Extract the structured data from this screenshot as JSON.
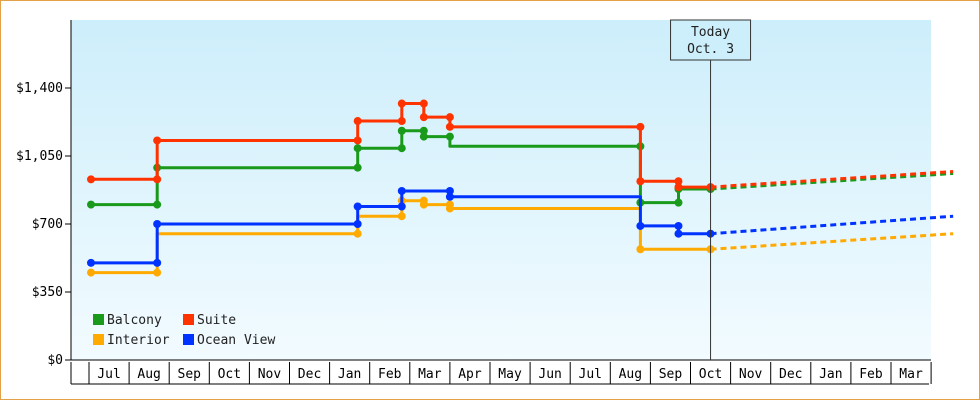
{
  "chart_data": {
    "type": "line",
    "title": "",
    "xlabel": "",
    "ylabel": "",
    "ylim": [
      0,
      1750
    ],
    "y_ticks": [
      "$0",
      "$350",
      "$700",
      "$1,050",
      "$1,400"
    ],
    "y_tick_values": [
      0,
      350,
      700,
      1050,
      1400
    ],
    "x_labels": [
      "Jul",
      "Aug",
      "Sep",
      "Oct",
      "Nov",
      "Dec",
      "Jan",
      "Feb",
      "Mar",
      "Apr",
      "May",
      "Jun",
      "Jul",
      "Aug",
      "Sep",
      "Oct",
      "Nov",
      "Dec",
      "Jan",
      "Feb",
      "Mar"
    ],
    "today_marker": {
      "line1": "Today",
      "line2": "Oct. 3",
      "x": 15.0
    },
    "legend": [
      {
        "name": "Balcony",
        "color": "#1a9a1a"
      },
      {
        "name": "Suite",
        "color": "#ff3300"
      },
      {
        "name": "Interior",
        "color": "#ffaa00"
      },
      {
        "name": "Ocean View",
        "color": "#0033ff"
      }
    ],
    "series": [
      {
        "name": "Balcony",
        "color": "#1a9a1a",
        "steps": [
          [
            -0.45,
            800
          ],
          [
            1.2,
            800
          ],
          [
            1.2,
            990
          ],
          [
            6.2,
            990
          ],
          [
            6.2,
            1090
          ],
          [
            7.3,
            1090
          ],
          [
            7.3,
            1180
          ],
          [
            7.85,
            1180
          ],
          [
            7.85,
            1150
          ],
          [
            8.5,
            1150
          ],
          [
            8.5,
            1100
          ],
          [
            13.25,
            1100
          ],
          [
            13.25,
            810
          ],
          [
            14.2,
            810
          ],
          [
            14.2,
            880
          ],
          [
            15.0,
            880
          ]
        ],
        "points": [
          [
            -0.45,
            800
          ],
          [
            1.2,
            800
          ],
          [
            1.2,
            990
          ],
          [
            6.2,
            990
          ],
          [
            6.2,
            1090
          ],
          [
            7.3,
            1090
          ],
          [
            7.3,
            1180
          ],
          [
            7.85,
            1180
          ],
          [
            7.85,
            1150
          ],
          [
            8.5,
            1150
          ],
          [
            13.25,
            1100
          ],
          [
            13.25,
            810
          ],
          [
            14.2,
            810
          ],
          [
            14.2,
            880
          ],
          [
            15.0,
            880
          ]
        ],
        "forecast": [
          [
            15.0,
            880
          ],
          [
            21.05,
            960
          ]
        ]
      },
      {
        "name": "Suite",
        "color": "#ff3300",
        "steps": [
          [
            -0.45,
            930
          ],
          [
            1.2,
            930
          ],
          [
            1.2,
            1130
          ],
          [
            6.2,
            1130
          ],
          [
            6.2,
            1230
          ],
          [
            7.3,
            1230
          ],
          [
            7.3,
            1320
          ],
          [
            7.85,
            1320
          ],
          [
            7.85,
            1250
          ],
          [
            8.5,
            1250
          ],
          [
            8.5,
            1200
          ],
          [
            13.25,
            1200
          ],
          [
            13.25,
            920
          ],
          [
            14.2,
            920
          ],
          [
            14.2,
            890
          ],
          [
            15.0,
            890
          ]
        ],
        "points": [
          [
            -0.45,
            930
          ],
          [
            1.2,
            930
          ],
          [
            1.2,
            1130
          ],
          [
            6.2,
            1130
          ],
          [
            6.2,
            1230
          ],
          [
            7.3,
            1230
          ],
          [
            7.3,
            1320
          ],
          [
            7.85,
            1320
          ],
          [
            7.85,
            1250
          ],
          [
            8.5,
            1250
          ],
          [
            8.5,
            1200
          ],
          [
            13.25,
            1200
          ],
          [
            13.25,
            920
          ],
          [
            14.2,
            920
          ],
          [
            14.2,
            890
          ],
          [
            15.0,
            890
          ]
        ],
        "forecast": [
          [
            15.0,
            890
          ],
          [
            21.05,
            970
          ]
        ]
      },
      {
        "name": "Interior",
        "color": "#ffaa00",
        "steps": [
          [
            -0.45,
            450
          ],
          [
            1.2,
            450
          ],
          [
            1.2,
            650
          ],
          [
            6.2,
            650
          ],
          [
            6.2,
            740
          ],
          [
            7.3,
            740
          ],
          [
            7.3,
            820
          ],
          [
            7.85,
            820
          ],
          [
            7.85,
            800
          ],
          [
            8.5,
            800
          ],
          [
            8.5,
            780
          ],
          [
            13.25,
            780
          ],
          [
            13.25,
            570
          ],
          [
            15.0,
            570
          ]
        ],
        "points": [
          [
            -0.45,
            450
          ],
          [
            1.2,
            450
          ],
          [
            6.2,
            650
          ],
          [
            7.3,
            740
          ],
          [
            7.3,
            820
          ],
          [
            7.85,
            820
          ],
          [
            7.85,
            800
          ],
          [
            8.5,
            800
          ],
          [
            8.5,
            780
          ],
          [
            13.25,
            570
          ],
          [
            15.0,
            570
          ]
        ],
        "forecast": [
          [
            15.0,
            570
          ],
          [
            21.05,
            650
          ]
        ]
      },
      {
        "name": "Ocean View",
        "color": "#0033ff",
        "steps": [
          [
            -0.45,
            500
          ],
          [
            1.2,
            500
          ],
          [
            1.2,
            700
          ],
          [
            6.2,
            700
          ],
          [
            6.2,
            790
          ],
          [
            7.3,
            790
          ],
          [
            7.3,
            870
          ],
          [
            8.5,
            870
          ],
          [
            8.5,
            840
          ],
          [
            13.25,
            840
          ],
          [
            13.25,
            690
          ],
          [
            14.2,
            690
          ],
          [
            14.2,
            650
          ],
          [
            15.0,
            650
          ]
        ],
        "points": [
          [
            -0.45,
            500
          ],
          [
            1.2,
            500
          ],
          [
            1.2,
            700
          ],
          [
            6.2,
            700
          ],
          [
            6.2,
            790
          ],
          [
            7.3,
            790
          ],
          [
            7.3,
            870
          ],
          [
            8.5,
            870
          ],
          [
            8.5,
            840
          ],
          [
            13.25,
            690
          ],
          [
            14.2,
            690
          ],
          [
            14.2,
            650
          ],
          [
            15.0,
            650
          ]
        ],
        "forecast": [
          [
            15.0,
            650
          ],
          [
            21.05,
            740
          ]
        ]
      }
    ],
    "grid": false,
    "legend_position": "bottom-left"
  }
}
